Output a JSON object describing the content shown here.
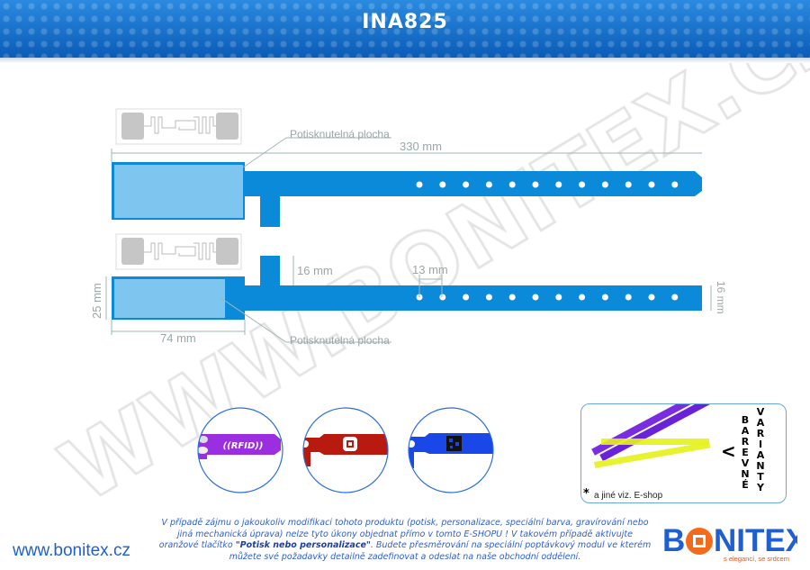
{
  "header": {
    "title": "INA825"
  },
  "diagram": {
    "printable_area_label": "Potisknutelná plocha",
    "length": "330 mm",
    "tab_height": "16 mm",
    "hole_spacing": "13 mm",
    "strap_width": "16 mm",
    "head_height": "25 mm",
    "head_width": "74 mm",
    "band_color": "#0a8ad8",
    "print_area_color": "#7ec6f0"
  },
  "examples": [
    {
      "label": "((RFID))",
      "color": "#9a2ee0"
    },
    {
      "label": "",
      "color": "#b81a10"
    },
    {
      "label": "",
      "color": "#1a48e8"
    }
  ],
  "color_variants": {
    "title_1": "BAREVNÉ",
    "title_2": "VARIANTY",
    "arrow": "<",
    "footnote_mark": "*",
    "footnote": "a jiné viz. E-shop",
    "colors": [
      "#7a2ce0",
      "#e6f21a"
    ]
  },
  "footer": {
    "note_1": "V případě zájmu o jakoukoliv modifikaci tohoto produktu (potisk, personalizace, speciální barva, gravírování nebo jiná mechanická úprava) nelze tyto úkony objednat přímo v tomto E-SHOPU ! V takovém případě aktivujte oranžové tlačítko",
    "note_button": "\"Potisk nebo personalizace\"",
    "note_2": ". Budete přesměrování na speciální poptávkový modul ve kterém můžete své požadavky detailně zadefinovat a odeslat na naše obchodní oddělení.",
    "url": "www.bonitex.cz",
    "logo": "BONITEX",
    "slogan": "s elegancí, se srdcem"
  },
  "watermark": "WWW.BONITEX.CZ"
}
